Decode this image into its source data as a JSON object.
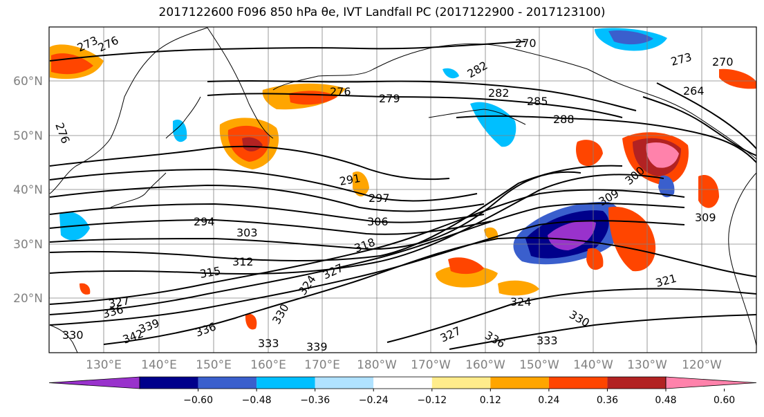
{
  "title": "2017122600 F096 850 hPa θe, IVT Landfall PC (2017122900 - 2017123100)",
  "latitude_labels": [
    "60°N",
    "50°N",
    "40°N",
    "30°N",
    "20°N"
  ],
  "longitude_labels": [
    "130°E",
    "140°E",
    "150°E",
    "160°E",
    "170°E",
    "180°W",
    "170°W",
    "160°W",
    "150°W",
    "140°W",
    "130°W",
    "120°W"
  ],
  "contour_labels": [
    "273",
    "276",
    "270",
    "273",
    "270",
    "264",
    "276",
    "279",
    "282",
    "285",
    "288",
    "291",
    "297",
    "294",
    "303",
    "306",
    "300",
    "309",
    "312",
    "315",
    "318",
    "309",
    "321",
    "324",
    "327",
    "327",
    "324",
    "330",
    "336",
    "339",
    "336",
    "342",
    "333",
    "330",
    "327",
    "336",
    "333",
    "339",
    "282",
    "276",
    "330"
  ],
  "colorbar": {
    "tick_labels": [
      "−0.60",
      "−0.48",
      "−0.36",
      "−0.24",
      "−0.12",
      "0.12",
      "0.24",
      "0.36",
      "0.48",
      "0.60"
    ],
    "colors": [
      "#9932CC",
      "#00008B",
      "#3A5FCD",
      "#00BFFF",
      "#B0E2FF",
      "#FFFFFF",
      "#FFEC8B",
      "#FFA500",
      "#FF4500",
      "#B22222",
      "#FF82AB"
    ]
  }
}
